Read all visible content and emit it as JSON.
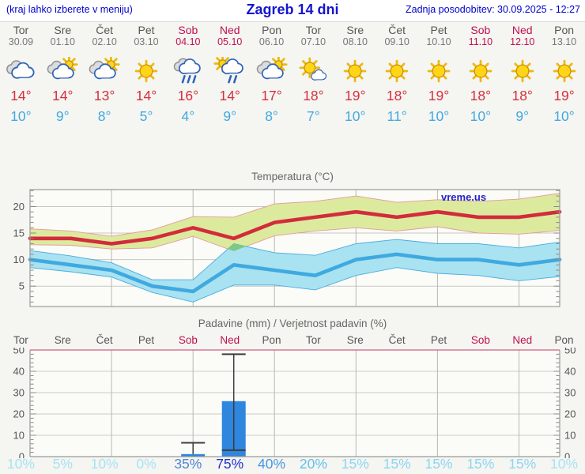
{
  "header": {
    "left_note": "(kraj lahko izberete v meniju)",
    "title": "Zagreb 14 dni",
    "updated": "Zadnja posodobitev: 30.09.2025 - 12:27"
  },
  "colors": {
    "header_blue": "#0000cc",
    "title_blue": "#1414d0",
    "weekend": "#c01050",
    "weekday_gray": "#555555",
    "tmax_red": "#d62f3f",
    "tmin_blue": "#41a9e1",
    "watermark_blue": "#2222cc",
    "bar_blue": "#2e86de"
  },
  "days": [
    {
      "name": "Tor",
      "date": "30.09",
      "weekend": false,
      "icon": "cloudy",
      "tmax": "14°",
      "tmin": "10°"
    },
    {
      "name": "Sre",
      "date": "01.10",
      "weekend": false,
      "icon": "partly-sunny",
      "tmax": "14°",
      "tmin": "9°"
    },
    {
      "name": "Čet",
      "date": "02.10",
      "weekend": false,
      "icon": "partly-sunny",
      "tmax": "13°",
      "tmin": "8°"
    },
    {
      "name": "Pet",
      "date": "03.10",
      "weekend": false,
      "icon": "sunny",
      "tmax": "14°",
      "tmin": "5°"
    },
    {
      "name": "Sob",
      "date": "04.10",
      "weekend": true,
      "icon": "rain",
      "tmax": "16°",
      "tmin": "4°"
    },
    {
      "name": "Ned",
      "date": "05.10",
      "weekend": true,
      "icon": "sun-shower",
      "tmax": "14°",
      "tmin": "9°"
    },
    {
      "name": "Pon",
      "date": "06.10",
      "weekend": false,
      "icon": "partly-sunny",
      "tmax": "17°",
      "tmin": "8°"
    },
    {
      "name": "Tor",
      "date": "07.10",
      "weekend": false,
      "icon": "mostly-sunny",
      "tmax": "18°",
      "tmin": "7°"
    },
    {
      "name": "Sre",
      "date": "08.10",
      "weekend": false,
      "icon": "sunny",
      "tmax": "19°",
      "tmin": "10°"
    },
    {
      "name": "Čet",
      "date": "09.10",
      "weekend": false,
      "icon": "sunny",
      "tmax": "18°",
      "tmin": "11°"
    },
    {
      "name": "Pet",
      "date": "10.10",
      "weekend": false,
      "icon": "sunny",
      "tmax": "19°",
      "tmin": "10°"
    },
    {
      "name": "Sob",
      "date": "11.10",
      "weekend": true,
      "icon": "sunny",
      "tmax": "18°",
      "tmin": "10°"
    },
    {
      "name": "Ned",
      "date": "12.10",
      "weekend": true,
      "icon": "sunny",
      "tmax": "18°",
      "tmin": "9°"
    },
    {
      "name": "Pon",
      "date": "13.10",
      "weekend": false,
      "icon": "sunny",
      "tmax": "19°",
      "tmin": "10°"
    }
  ],
  "chart_data": [
    {
      "type": "line",
      "title": "Temperatura (°C)",
      "categories": [
        "Tor 30.09",
        "Sre 01.10",
        "Čet 02.10",
        "Pet 03.10",
        "Sob 04.10",
        "Ned 05.10",
        "Pon 06.10",
        "Tor 07.10",
        "Sre 08.10",
        "Čet 09.10",
        "Pet 10.10",
        "Sob 11.10",
        "Ned 12.10",
        "Pon 13.10"
      ],
      "ylim": [
        1.15,
        23.2
      ],
      "yticks": [
        5,
        10,
        15,
        20
      ],
      "grid": "on",
      "legend": "none",
      "watermark": "vreme.us",
      "overlap_color": "#80c882",
      "series": [
        {
          "name": "max temperatura",
          "color": "#d22c3c",
          "band_color": "#dcea9e",
          "band_edge": "#e59a9a",
          "values": [
            14,
            14,
            13,
            14,
            16,
            14,
            17,
            18,
            19,
            18,
            19,
            18,
            18,
            19
          ],
          "band_upper": [
            15.8,
            15.4,
            14.4,
            15.6,
            18.1,
            18.0,
            20.5,
            21.0,
            22.0,
            20.8,
            21.3,
            21.0,
            21.4,
            22.5
          ],
          "band_lower": [
            12.8,
            12.7,
            12.0,
            12.2,
            14.4,
            11.6,
            14.5,
            15.4,
            16.0,
            15.4,
            16.2,
            15.0,
            14.8,
            15.5
          ]
        },
        {
          "name": "min temperatura",
          "color": "#3fa9e0",
          "band_color": "#a9e2f1",
          "band_edge": "#4aacdf",
          "values": [
            10,
            9,
            8,
            5,
            4,
            9,
            8,
            7,
            10,
            11,
            10,
            10,
            9,
            10
          ],
          "band_upper": [
            11.7,
            10.7,
            9.4,
            6.2,
            6.2,
            13.0,
            11.3,
            10.8,
            13.0,
            13.8,
            13.0,
            13.0,
            12.2,
            13.3
          ],
          "band_lower": [
            8.5,
            7.7,
            6.7,
            3.8,
            2.0,
            5.2,
            5.2,
            4.3,
            7.0,
            8.5,
            7.4,
            7.0,
            6.0,
            6.8
          ]
        }
      ]
    },
    {
      "type": "bar",
      "title": "Padavine (mm) / Verjetnost padavin (%)",
      "categories": [
        "Tor",
        "Sre",
        "Čet",
        "Pet",
        "Sob",
        "Ned",
        "Pon",
        "Tor",
        "Sre",
        "Čet",
        "Pet",
        "Sob",
        "Ned",
        "Pon"
      ],
      "weekend_flags": [
        false,
        false,
        false,
        false,
        true,
        true,
        false,
        false,
        false,
        false,
        false,
        true,
        true,
        false
      ],
      "values": [
        0,
        0,
        0,
        0,
        1.2,
        26,
        0,
        0,
        0,
        0,
        0,
        0,
        0,
        0
      ],
      "whiskers": [
        {
          "index": 4,
          "from": 1.2,
          "to": 6.5,
          "cap_from": false
        },
        {
          "index": 5,
          "from": 3,
          "to": 48,
          "cap_from": true
        }
      ],
      "ylim": [
        0,
        50
      ],
      "yticks": [
        0,
        10,
        20,
        30,
        40,
        50
      ],
      "bar_color": "#2e86de",
      "probabilities": [
        "10%",
        "5%",
        "10%",
        "0%",
        "35%",
        "75%",
        "40%",
        "20%",
        "15%",
        "15%",
        "15%",
        "15%",
        "15%",
        "10%"
      ],
      "prob_colors": [
        "#a6e3f5",
        "#a6e3f5",
        "#a6e3f5",
        "#a6e3f5",
        "#4e86d8",
        "#2133cf",
        "#4796e2",
        "#5fc2ec",
        "#8cd6f2",
        "#8cd6f2",
        "#8cd6f2",
        "#8cd6f2",
        "#8cd6f2",
        "#a6e3f5"
      ]
    }
  ]
}
